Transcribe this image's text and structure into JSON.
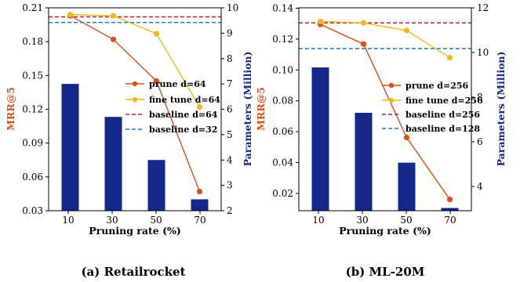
{
  "colors": {
    "bar": "#13288a",
    "prune": "#db4f19",
    "fine_tune": "#efb81f",
    "baseline_large": "#b8262f",
    "baseline_small": "#1f78c1",
    "left_axis_label": "#db4f19",
    "right_axis_label": "#13288a"
  },
  "chart_data": [
    {
      "type": "bar",
      "caption": "(a) Retailrocket",
      "categories": [
        "10",
        "30",
        "50",
        "70"
      ],
      "xlabel": "Pruning rate (%)",
      "ylabel_left": "MRR@5",
      "ylabel_right": "Parameters (Million)",
      "ylim_left": [
        0.03,
        0.21
      ],
      "yticks_left": [
        "0.03",
        "0.06",
        "0.09",
        "0.12",
        "0.15",
        "0.18",
        "0.21"
      ],
      "ylim_right": [
        2,
        10
      ],
      "yticks_right": [
        "2",
        "3",
        "4",
        "5",
        "6",
        "7",
        "8",
        "9",
        "10"
      ],
      "bars_axis": "right",
      "bars": [
        7.0,
        5.7,
        4.0,
        2.45
      ],
      "series": [
        {
          "name": "prune d=64",
          "kind": "line",
          "axis": "left",
          "color": "#db4f19",
          "values": [
            0.203,
            0.182,
            0.145,
            0.047
          ]
        },
        {
          "name": "fine tune d=64",
          "kind": "line",
          "axis": "left",
          "color": "#efb81f",
          "values": [
            0.204,
            0.203,
            0.187,
            0.122
          ]
        }
      ],
      "baselines": [
        {
          "name": "baseline d=64",
          "color": "#b8262f",
          "value": 0.202,
          "axis": "left"
        },
        {
          "name": "baseline d=32",
          "color": "#1f78c1",
          "value": 0.197,
          "axis": "left"
        }
      ],
      "legend_position": "center-right"
    },
    {
      "type": "bar",
      "caption": "(b) ML-20M",
      "categories": [
        "10",
        "30",
        "50",
        "70"
      ],
      "xlabel": "Pruning rate (%)",
      "ylabel_left": "MRR@5",
      "ylabel_right": "Parameters (Million)",
      "ylim_left": [
        0.0055,
        0.14
      ],
      "yticks_left": [
        "0.02",
        "0.04",
        "0.06",
        "0.08",
        "0.10",
        "0.12",
        "0.14"
      ],
      "ylim_right": [
        3.05,
        12
      ],
      "yticks_right": [
        "4",
        "6",
        "8",
        "10",
        "12"
      ],
      "bars_axis": "right",
      "bars": [
        9.37,
        7.37,
        5.17,
        3.17
      ],
      "series": [
        {
          "name": "prune d=256",
          "kind": "line",
          "axis": "left",
          "color": "#db4f19",
          "values": [
            0.129,
            0.116,
            0.054,
            0.013
          ]
        },
        {
          "name": "fine tune d=256",
          "kind": "line",
          "axis": "left",
          "color": "#efb81f",
          "values": [
            0.131,
            0.13,
            0.125,
            0.107
          ]
        }
      ],
      "baselines": [
        {
          "name": "baseline d=256",
          "color": "#b8262f",
          "value": 0.13,
          "axis": "left"
        },
        {
          "name": "baseline d=128",
          "color": "#1f78c1",
          "value": 0.113,
          "axis": "left"
        }
      ],
      "legend_position": "center-right"
    }
  ]
}
